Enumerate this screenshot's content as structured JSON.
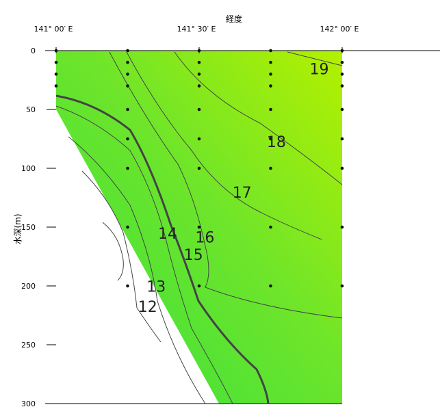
{
  "chart_data": {
    "type": "contour",
    "title": "",
    "xlabel": "経度",
    "ylabel": "水深(m)",
    "x_ticks": [
      {
        "value": 141.0,
        "label": "141° 00′ E"
      },
      {
        "value": 141.5,
        "label": "141° 30′ E"
      },
      {
        "value": 142.0,
        "label": "142° 00′ E"
      }
    ],
    "y_ticks": [
      0,
      50,
      100,
      150,
      200,
      250,
      300
    ],
    "xlim": [
      141.0,
      142.0
    ],
    "ylim": [
      0,
      300
    ],
    "colors": {
      "low": "#2ecc40",
      "high": "#a8f000",
      "contour": "#444444"
    },
    "stations": [
      {
        "lon": 141.0,
        "depths": [
          0,
          10,
          20,
          30
        ]
      },
      {
        "lon": 141.25,
        "depths": [
          0,
          10,
          20,
          30,
          50,
          75,
          100,
          150,
          200
        ]
      },
      {
        "lon": 141.5,
        "depths": [
          0,
          10,
          20,
          30,
          50,
          75,
          100,
          150,
          200
        ]
      },
      {
        "lon": 141.75,
        "depths": [
          0,
          10,
          20,
          30,
          50,
          75,
          100,
          150,
          200
        ]
      },
      {
        "lon": 142.0,
        "depths": [
          0,
          10,
          20,
          30,
          50,
          75,
          100,
          150,
          200
        ]
      }
    ],
    "contour_labels": [
      {
        "label": "19",
        "lon": 141.92,
        "depth": 20
      },
      {
        "label": "18",
        "lon": 141.77,
        "depth": 82
      },
      {
        "label": "17",
        "lon": 141.65,
        "depth": 125
      },
      {
        "label": "16",
        "lon": 141.52,
        "depth": 163
      },
      {
        "label": "15",
        "lon": 141.48,
        "depth": 178
      },
      {
        "label": "14",
        "lon": 141.39,
        "depth": 160
      },
      {
        "label": "13",
        "lon": 141.35,
        "depth": 205
      },
      {
        "label": "12",
        "lon": 141.32,
        "depth": 222
      }
    ]
  }
}
